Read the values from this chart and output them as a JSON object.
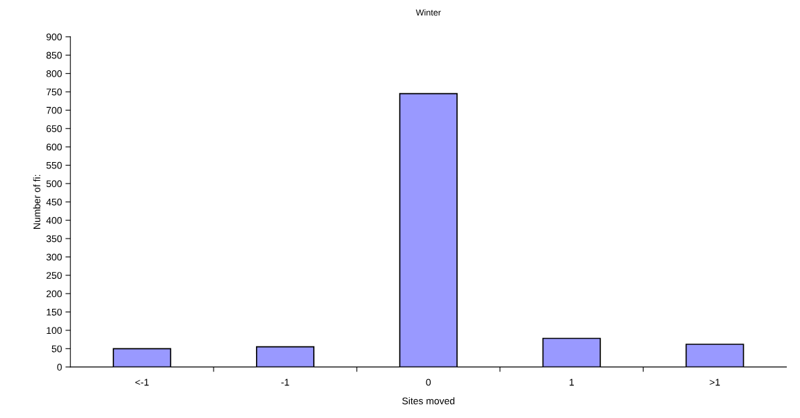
{
  "chart_data": {
    "type": "bar",
    "title": "Winter",
    "xlabel": "Sites moved",
    "ylabel": "Number of fi:",
    "categories": [
      "<-1",
      "-1",
      "0",
      "1",
      ">1"
    ],
    "values": [
      50,
      55,
      745,
      78,
      62
    ],
    "color": "#9999ff",
    "ylim": [
      0,
      900
    ],
    "yticks": [
      0,
      50,
      100,
      150,
      200,
      250,
      300,
      350,
      400,
      450,
      500,
      550,
      600,
      650,
      700,
      750,
      800,
      850,
      900
    ],
    "grid": false,
    "legend": false
  }
}
